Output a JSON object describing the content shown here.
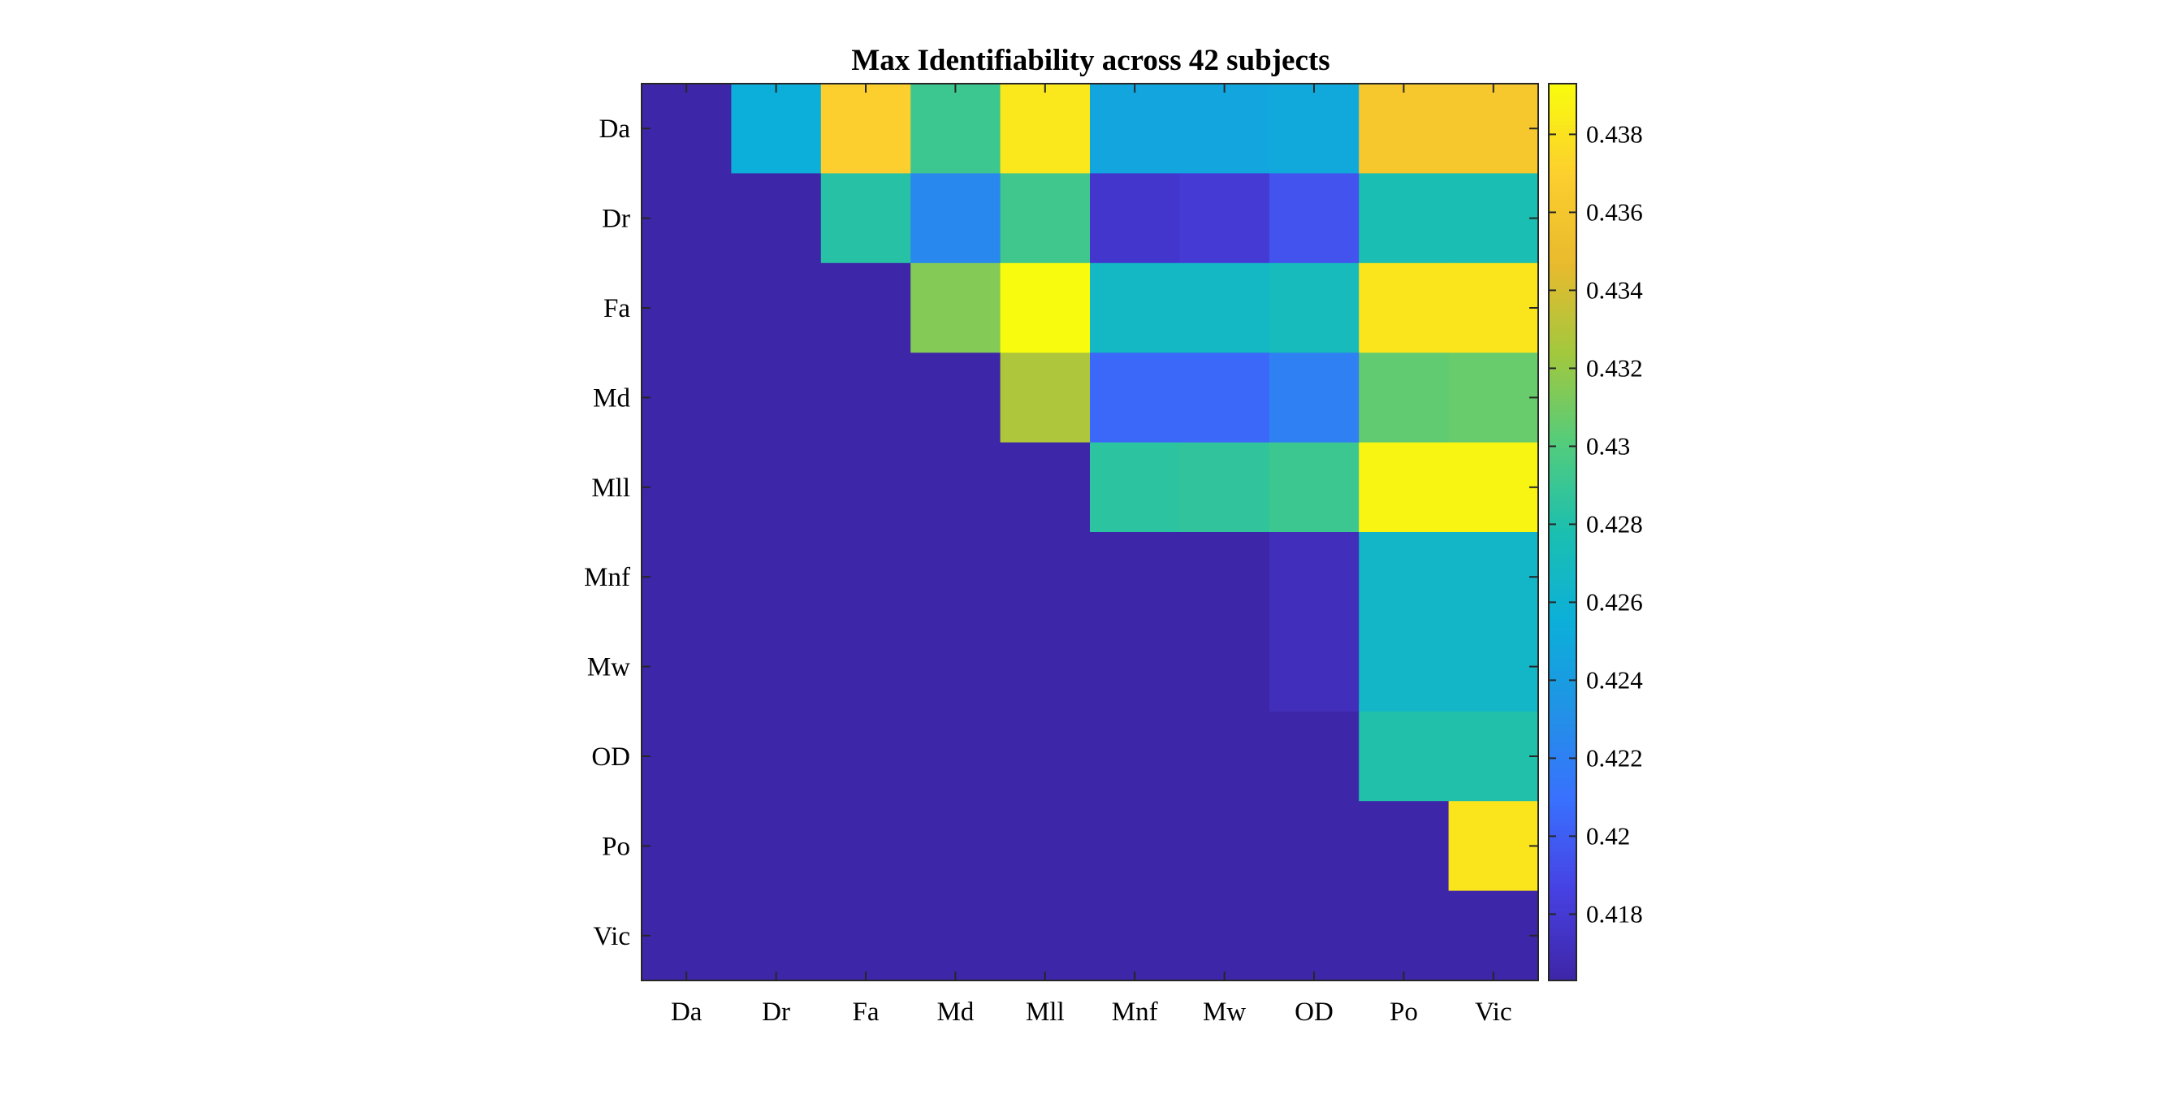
{
  "chart_data": {
    "type": "heatmap",
    "title": "Max Identifiability across 42 subjects",
    "x_categories": [
      "Da",
      "Dr",
      "Fa",
      "Md",
      "Mll",
      "Mnf",
      "Mw",
      "OD",
      "Po",
      "Vic"
    ],
    "y_categories": [
      "Da",
      "Dr",
      "Fa",
      "Md",
      "Mll",
      "Mnf",
      "Mw",
      "OD",
      "Po",
      "Vic"
    ],
    "values": [
      [
        0.4163,
        0.4255,
        0.437,
        0.4292,
        0.4383,
        0.4247,
        0.4247,
        0.425,
        0.4363,
        0.4363
      ],
      [
        0.4163,
        0.4163,
        0.4283,
        0.4225,
        0.4293,
        0.4177,
        0.418,
        0.4195,
        0.4277,
        0.4277
      ],
      [
        0.4163,
        0.4163,
        0.4163,
        0.4315,
        0.4393,
        0.4267,
        0.4267,
        0.4272,
        0.4382,
        0.4382
      ],
      [
        0.4163,
        0.4163,
        0.4163,
        0.4163,
        0.4328,
        0.4205,
        0.4205,
        0.422,
        0.4305,
        0.4307
      ],
      [
        0.4163,
        0.4163,
        0.4163,
        0.4163,
        0.4163,
        0.4285,
        0.4287,
        0.4292,
        0.439,
        0.439
      ],
      [
        0.4163,
        0.4163,
        0.4163,
        0.4163,
        0.4163,
        0.4163,
        0.4163,
        0.417,
        0.4265,
        0.4265
      ],
      [
        0.4163,
        0.4163,
        0.4163,
        0.4163,
        0.4163,
        0.4163,
        0.4163,
        0.417,
        0.4265,
        0.4265
      ],
      [
        0.4163,
        0.4163,
        0.4163,
        0.4163,
        0.4163,
        0.4163,
        0.4163,
        0.4163,
        0.428,
        0.428
      ],
      [
        0.4163,
        0.4163,
        0.4163,
        0.4163,
        0.4163,
        0.4163,
        0.4163,
        0.4163,
        0.4163,
        0.4382
      ],
      [
        0.4163,
        0.4163,
        0.4163,
        0.4163,
        0.4163,
        0.4163,
        0.4163,
        0.4163,
        0.4163,
        0.4163
      ]
    ],
    "colorbar": {
      "colormap": "parula",
      "range": [
        0.4163,
        0.4393
      ],
      "ticks": [
        0.418,
        0.42,
        0.422,
        0.424,
        0.426,
        0.428,
        0.43,
        0.432,
        0.434,
        0.436,
        0.438
      ],
      "tick_labels": [
        "0.418",
        "0.42",
        "0.422",
        "0.424",
        "0.426",
        "0.428",
        "0.43",
        "0.432",
        "0.434",
        "0.436",
        "0.438"
      ],
      "placement": "right"
    },
    "xlabel": "",
    "ylabel": ""
  }
}
